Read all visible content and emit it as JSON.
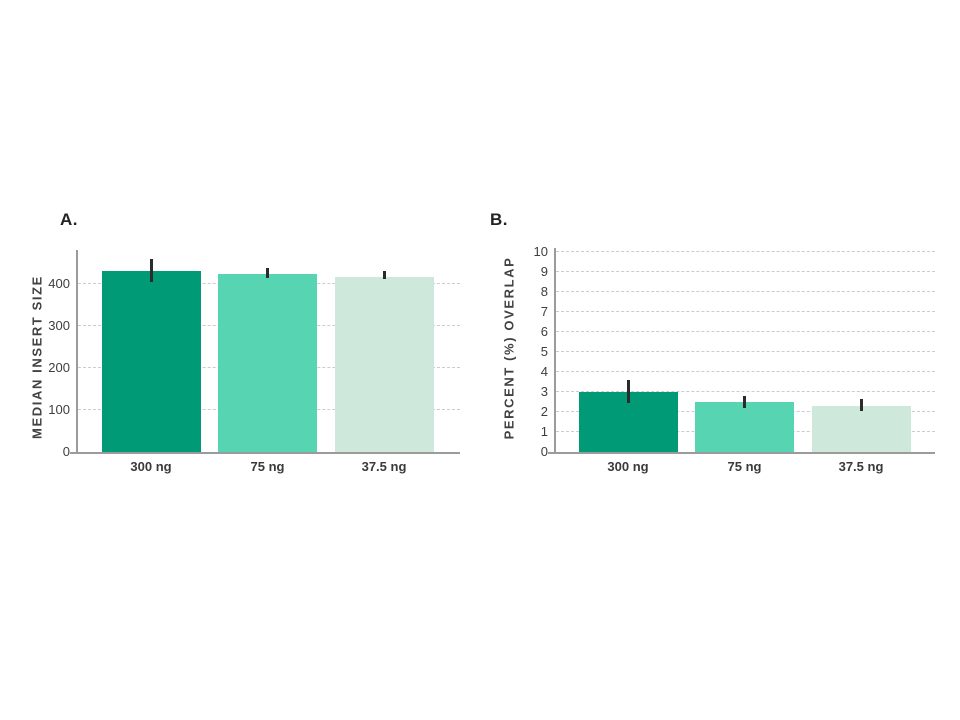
{
  "page": {
    "background": "#ffffff"
  },
  "styles": {
    "text_color": "#3e3e3e",
    "axis_color": "#9b9b9b",
    "grid_color": "#cccccc",
    "error_bar_color": "#2b2b2b",
    "bar_colors": [
      "#009b76",
      "#57d4b2",
      "#cfe8dc"
    ]
  },
  "chart_data": [
    {
      "type": "bar",
      "panel_label": "A.",
      "title": "",
      "ylabel": "MEDIAN INSERT SIZE",
      "xlabel": "",
      "categories": [
        "300 ng",
        "75 ng",
        "37.5 ng"
      ],
      "values": [
        430,
        424,
        417
      ],
      "error_up": [
        28,
        13,
        12
      ],
      "error_down": [
        27,
        11,
        6
      ],
      "yticks": [
        0,
        100,
        200,
        300,
        400
      ],
      "ylim": [
        0,
        480
      ],
      "grid": "horizontal-dashed",
      "legend": "none",
      "bar_colors": [
        "#009b76",
        "#57d4b2",
        "#cfe8dc"
      ]
    },
    {
      "type": "bar",
      "panel_label": "B.",
      "title": "",
      "ylabel": "PERCENT (%) OVERLAP",
      "xlabel": "",
      "categories": [
        "300 ng",
        "75 ng",
        "37.5 ng"
      ],
      "values": [
        3.0,
        2.5,
        2.3
      ],
      "error_up": [
        0.6,
        0.3,
        0.35
      ],
      "error_down": [
        0.55,
        0.3,
        0.25
      ],
      "yticks": [
        0,
        1,
        2,
        3,
        4,
        5,
        6,
        7,
        8,
        9,
        10
      ],
      "ylim": [
        0,
        10.2
      ],
      "grid": "horizontal-dashed",
      "legend": "none",
      "bar_colors": [
        "#009b76",
        "#57d4b2",
        "#cfe8dc"
      ]
    }
  ]
}
